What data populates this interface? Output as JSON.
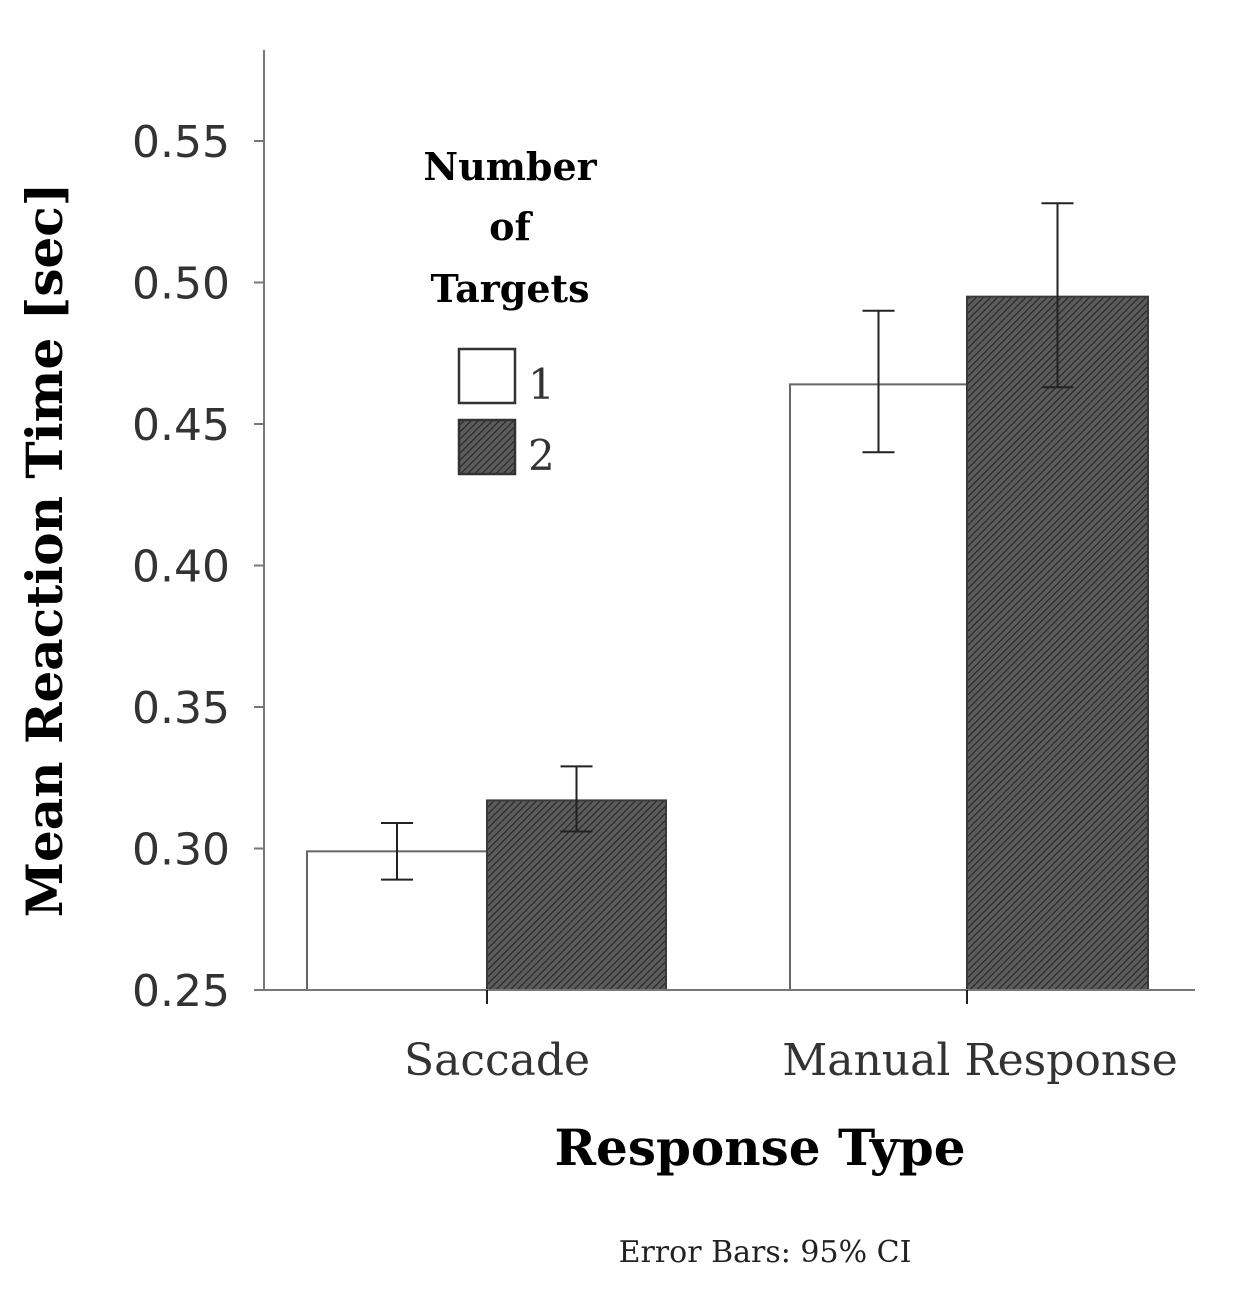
{
  "chart_data": {
    "type": "bar",
    "title": "",
    "xlabel": "Response Type",
    "ylabel": "Mean Reaction Time [sec]",
    "ylim": [
      0.25,
      0.58
    ],
    "yticks": [
      "0.25",
      "0.30",
      "0.35",
      "0.40",
      "0.45",
      "0.50",
      "0.55"
    ],
    "categories": [
      "Saccade",
      "Manual Response"
    ],
    "series": [
      {
        "name": "1",
        "values": [
          0.299,
          0.464
        ],
        "ci_low": [
          0.289,
          0.44
        ],
        "ci_high": [
          0.309,
          0.49
        ],
        "fill": "#ffffff",
        "pattern": "none"
      },
      {
        "name": "2",
        "values": [
          0.317,
          0.495
        ],
        "ci_low": [
          0.306,
          0.463
        ],
        "ci_high": [
          0.329,
          0.528
        ],
        "fill": "#555555",
        "pattern": "hatch"
      }
    ],
    "legend": {
      "title_lines": [
        "Number",
        "of",
        "Targets"
      ],
      "placement": "top-left"
    },
    "note": "Error Bars: 95% CI",
    "grid": false
  }
}
